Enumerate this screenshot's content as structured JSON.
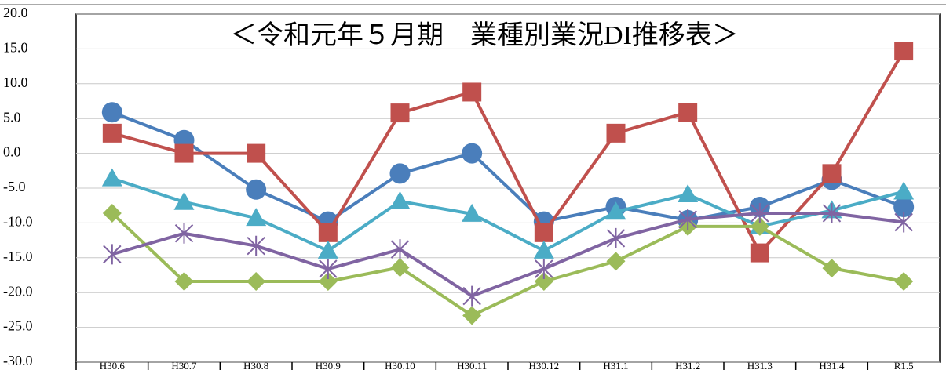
{
  "chart_data": {
    "type": "line",
    "title": "＜令和元年５月期　業種別業況DI推移表＞",
    "categories": [
      "H30.6",
      "H30.7",
      "H30.8",
      "H30.9",
      "H30.10",
      "H30.11",
      "H30.12",
      "H31.1",
      "H31.2",
      "H31.3",
      "H31.4",
      "R1.5"
    ],
    "series": [
      {
        "color": "#4a7ebb",
        "marker": "circle",
        "values": [
          5.9,
          1.9,
          -5.2,
          -9.8,
          -2.9,
          0,
          -9.8,
          -7.7,
          -9.6,
          -7.7,
          -3.8,
          -7.7
        ]
      },
      {
        "color": "#c0504d",
        "marker": "square",
        "values": [
          2.9,
          0,
          0,
          -11.4,
          5.8,
          8.8,
          -11.4,
          2.9,
          5.9,
          -14.3,
          -2.9,
          14.7
        ]
      },
      {
        "color": "#4bacc6",
        "marker": "triangle",
        "values": [
          -3.6,
          -7,
          -9.3,
          -14,
          -6.9,
          -8.7,
          -14,
          -8.4,
          -5.9,
          -10.5,
          -8.2,
          -5.5
        ]
      },
      {
        "color": "#9bbb59",
        "marker": "diamond",
        "values": [
          -8.6,
          -18.4,
          -18.4,
          -18.4,
          -16.4,
          -23.3,
          -18.4,
          -15.5,
          -10.5,
          -10.5,
          -16.5,
          -18.4
        ]
      },
      {
        "color": "#8064a2",
        "marker": "star",
        "values": [
          -14.5,
          -11.5,
          -13.3,
          -16.6,
          -13.8,
          -20.5,
          -16.6,
          -12.2,
          -9.5,
          -8.6,
          -8.6,
          -9.9
        ]
      }
    ],
    "ylim": [
      -30,
      20
    ],
    "yticks": [
      {
        "value": -30,
        "label": "-30.0"
      },
      {
        "value": -25,
        "label": "-25.0"
      },
      {
        "value": -20,
        "label": "-20.0"
      },
      {
        "value": -15,
        "label": "-15.0"
      },
      {
        "value": -10,
        "label": "-10.0"
      },
      {
        "value": -5,
        "label": "-5.0"
      },
      {
        "value": 0,
        "label": "0.0"
      },
      {
        "value": 5,
        "label": "5.0"
      },
      {
        "value": 10,
        "label": "10.0"
      },
      {
        "value": 15,
        "label": "15.0"
      },
      {
        "value": 20,
        "label": "20.0"
      }
    ],
    "grid": true
  }
}
